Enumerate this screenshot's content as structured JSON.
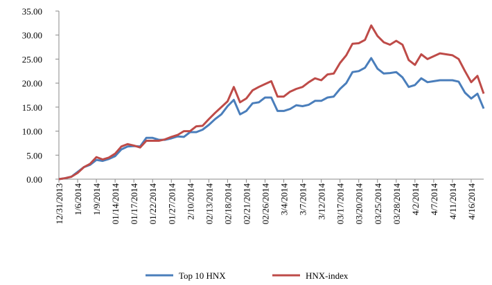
{
  "chart_data": {
    "type": "line",
    "categories": [
      "12/31/2013",
      null,
      null,
      "1/6/2014",
      null,
      null,
      "1/9/2014",
      null,
      null,
      "01/14/2014",
      null,
      null,
      "01/17/2014",
      null,
      null,
      "01/22/2014",
      null,
      null,
      "01/27/2014",
      null,
      null,
      "2/10/2014",
      null,
      null,
      "02/13/2014",
      null,
      null,
      "02/18/2014",
      null,
      null,
      "02/21/2014",
      null,
      null,
      "02/26/2014",
      null,
      null,
      "3/4/2014",
      null,
      null,
      "3/7/2014",
      null,
      null,
      "3/12/2014",
      null,
      null,
      "03/17/2014",
      null,
      null,
      "03/20/2014",
      null,
      null,
      "03/25/2014",
      null,
      null,
      "03/28/2014",
      null,
      null,
      "4/2/2014",
      null,
      null,
      "4/7/2014",
      null,
      null,
      "4/11/2014",
      null,
      null,
      "4/16/2014",
      null,
      null
    ],
    "series": [
      {
        "name": "Top 10 HNX",
        "color": "#4a7ebb",
        "values": [
          0,
          0.2,
          0.5,
          1.5,
          2.5,
          3,
          4,
          3.8,
          4.2,
          4.8,
          6.2,
          6.8,
          6.9,
          6.8,
          8.6,
          8.6,
          8.2,
          8.2,
          8.5,
          8.9,
          8.8,
          9.8,
          9.8,
          10.3,
          11.3,
          12.5,
          13.5,
          15.2,
          16.5,
          13.5,
          14.2,
          15.8,
          16,
          17,
          17,
          14.2,
          14.2,
          14.6,
          15.4,
          15.2,
          15.5,
          16.3,
          16.3,
          17,
          17.2,
          18.8,
          20,
          22.3,
          22.5,
          23.2,
          25.2,
          23,
          22,
          22.1,
          22.3,
          21.2,
          19.2,
          19.6,
          21,
          20.2,
          20.4,
          20.6,
          20.6,
          20.6,
          20.3,
          18,
          16.8,
          17.8,
          14.7
        ]
      },
      {
        "name": "HNX-index",
        "color": "#be4b48",
        "values": [
          0,
          0.2,
          0.5,
          1.3,
          2.5,
          3.2,
          4.6,
          4.1,
          4.5,
          5.3,
          6.8,
          7.3,
          7,
          6.6,
          8,
          8,
          8,
          8.3,
          8.8,
          9.2,
          10,
          10,
          11,
          11.1,
          12.5,
          13.8,
          15,
          16.2,
          19.2,
          16,
          16.8,
          18.5,
          19.2,
          19.8,
          20.4,
          17.2,
          17.2,
          18.2,
          18.8,
          19.2,
          20.2,
          21,
          20.6,
          21.8,
          22,
          24.2,
          25.8,
          28.2,
          28.3,
          29,
          32,
          29.8,
          28.5,
          28,
          28.8,
          28,
          24.8,
          23.8,
          26,
          25,
          25.6,
          26.2,
          26,
          25.8,
          25,
          22.5,
          20.2,
          21.5,
          17.8
        ]
      }
    ],
    "ylim": [
      0,
      35
    ],
    "yticks": [
      {
        "value": 0,
        "label": "0.00"
      },
      {
        "value": 5,
        "label": "5.00"
      },
      {
        "value": 10,
        "label": "10.00"
      },
      {
        "value": 15,
        "label": "15.00"
      },
      {
        "value": 20,
        "label": "20.00"
      },
      {
        "value": 25,
        "label": "25.00"
      },
      {
        "value": 30,
        "label": "30.00"
      },
      {
        "value": 35,
        "label": "35.00"
      }
    ],
    "legend": "bottom"
  }
}
